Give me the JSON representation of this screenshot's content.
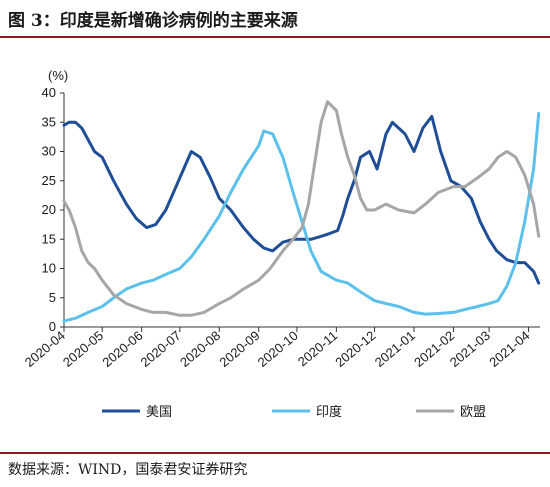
{
  "figure": {
    "title": "图 3：印度是新增确诊病例的主要来源",
    "source": "数据来源：WIND，国泰君安证券研究"
  },
  "chart_data": {
    "type": "line",
    "ylabel": "(%)",
    "ylim": [
      0,
      40
    ],
    "yticks": [
      0,
      5,
      10,
      15,
      20,
      25,
      30,
      35,
      40
    ],
    "xlim": [
      "2020-04-01",
      "2021-04-10"
    ],
    "xticks": [
      "2020-04",
      "2020-05",
      "2020-06",
      "2020-07",
      "2020-08",
      "2020-09",
      "2020-10",
      "2020-11",
      "2020-12",
      "2021-01",
      "2021-02",
      "2021-03",
      "2021-04"
    ],
    "legend_position": "bottom",
    "series": [
      {
        "name": "美国",
        "color": "#1f4e96",
        "x": [
          "2020-04-01",
          "2020-04-05",
          "2020-04-10",
          "2020-04-15",
          "2020-04-20",
          "2020-04-25",
          "2020-05-01",
          "2020-05-10",
          "2020-05-20",
          "2020-05-28",
          "2020-06-05",
          "2020-06-12",
          "2020-06-20",
          "2020-06-28",
          "2020-07-05",
          "2020-07-10",
          "2020-07-17",
          "2020-07-25",
          "2020-08-01",
          "2020-08-10",
          "2020-08-20",
          "2020-08-28",
          "2020-09-05",
          "2020-09-12",
          "2020-09-20",
          "2020-09-28",
          "2020-10-05",
          "2020-10-12",
          "2020-10-20",
          "2020-10-27",
          "2020-11-02",
          "2020-11-06",
          "2020-11-10",
          "2020-11-15",
          "2020-11-20",
          "2020-11-27",
          "2020-12-03",
          "2020-12-10",
          "2020-12-15",
          "2020-12-20",
          "2020-12-25",
          "2021-01-01",
          "2021-01-08",
          "2021-01-15",
          "2021-01-22",
          "2021-01-30",
          "2021-02-07",
          "2021-02-15",
          "2021-02-22",
          "2021-03-01",
          "2021-03-07",
          "2021-03-15",
          "2021-03-22",
          "2021-03-29",
          "2021-04-05",
          "2021-04-09"
        ],
        "values": [
          34.5,
          35,
          35,
          34,
          32,
          30,
          29,
          25,
          21,
          18.5,
          17,
          17.5,
          20,
          24,
          27.5,
          30,
          29,
          25.5,
          22,
          20,
          17,
          15,
          13.5,
          13,
          14.5,
          15,
          15,
          15,
          15.5,
          16,
          16.5,
          19,
          22,
          25,
          29,
          30,
          27,
          33,
          35,
          34,
          33,
          30,
          34,
          36,
          30,
          25,
          24,
          22,
          18,
          15,
          13,
          11.5,
          11,
          11,
          9.5,
          7.5
        ]
      },
      {
        "name": "印度",
        "color": "#5bc0eb",
        "x": [
          "2020-04-01",
          "2020-04-10",
          "2020-04-20",
          "2020-05-01",
          "2020-05-10",
          "2020-05-20",
          "2020-06-01",
          "2020-06-10",
          "2020-06-20",
          "2020-07-01",
          "2020-07-10",
          "2020-07-20",
          "2020-08-01",
          "2020-08-10",
          "2020-08-20",
          "2020-09-01",
          "2020-09-05",
          "2020-09-12",
          "2020-09-20",
          "2020-09-28",
          "2020-10-05",
          "2020-10-12",
          "2020-10-20",
          "2020-11-01",
          "2020-11-10",
          "2020-11-20",
          "2020-12-01",
          "2020-12-10",
          "2020-12-20",
          "2021-01-01",
          "2021-01-10",
          "2021-01-20",
          "2021-02-01",
          "2021-02-10",
          "2021-02-20",
          "2021-03-01",
          "2021-03-08",
          "2021-03-15",
          "2021-03-22",
          "2021-03-29",
          "2021-04-05",
          "2021-04-09"
        ],
        "values": [
          1,
          1.5,
          2.5,
          3.5,
          5,
          6.5,
          7.5,
          8,
          9,
          10,
          12,
          15,
          19,
          23,
          27,
          31,
          33.5,
          33,
          29,
          23,
          18,
          13,
          9.5,
          8,
          7.5,
          6,
          4.5,
          4,
          3.5,
          2.5,
          2.2,
          2.3,
          2.5,
          3,
          3.5,
          4,
          4.5,
          7,
          11,
          18,
          27,
          36.5
        ]
      },
      {
        "name": "欧盟",
        "color": "#a6a6a6",
        "x": [
          "2020-04-01",
          "2020-04-05",
          "2020-04-10",
          "2020-04-15",
          "2020-04-20",
          "2020-04-25",
          "2020-05-01",
          "2020-05-10",
          "2020-05-20",
          "2020-06-01",
          "2020-06-10",
          "2020-06-20",
          "2020-07-01",
          "2020-07-10",
          "2020-07-20",
          "2020-08-01",
          "2020-08-10",
          "2020-08-20",
          "2020-09-01",
          "2020-09-10",
          "2020-09-20",
          "2020-09-28",
          "2020-10-05",
          "2020-10-10",
          "2020-10-15",
          "2020-10-20",
          "2020-10-25",
          "2020-11-01",
          "2020-11-05",
          "2020-11-10",
          "2020-11-15",
          "2020-11-20",
          "2020-11-25",
          "2020-12-01",
          "2020-12-10",
          "2020-12-20",
          "2021-01-01",
          "2021-01-10",
          "2021-01-20",
          "2021-02-01",
          "2021-02-10",
          "2021-02-20",
          "2021-03-01",
          "2021-03-08",
          "2021-03-15",
          "2021-03-22",
          "2021-03-29",
          "2021-04-05",
          "2021-04-09"
        ],
        "values": [
          21.5,
          20,
          17,
          13,
          11,
          10,
          8,
          5.5,
          4,
          3,
          2.5,
          2.5,
          2,
          2,
          2.5,
          4,
          5,
          6.5,
          8,
          10,
          13,
          15,
          17,
          21,
          28,
          35,
          38.5,
          37,
          33,
          29,
          26,
          22,
          20,
          20,
          21,
          20,
          19.5,
          21,
          23,
          24,
          24,
          25.5,
          27,
          29,
          30,
          29,
          26,
          21,
          15.5
        ]
      }
    ]
  }
}
